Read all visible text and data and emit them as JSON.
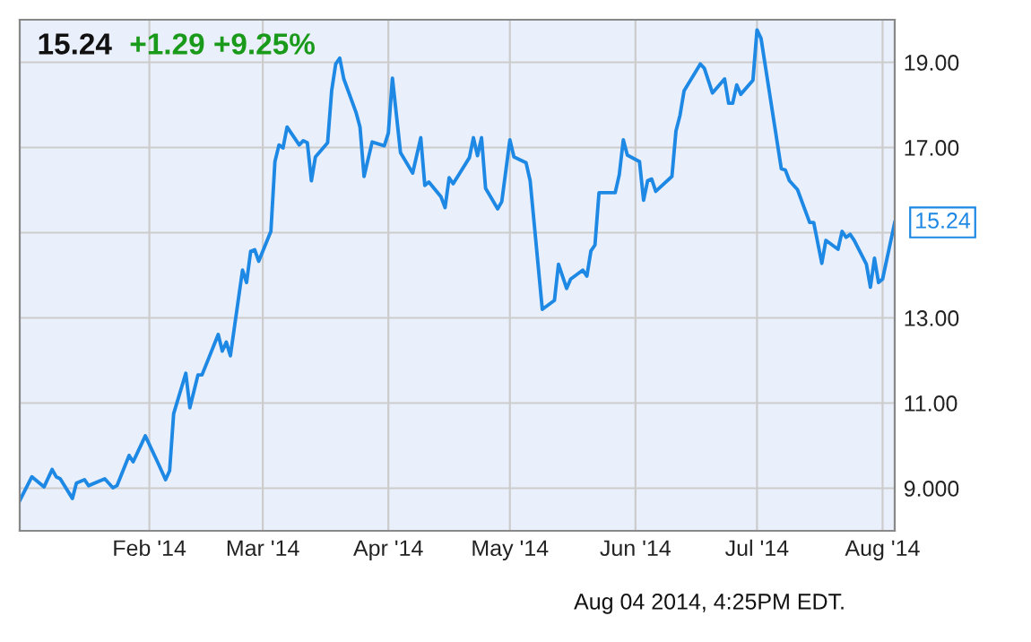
{
  "chart_data": {
    "type": "line",
    "title": "15.24",
    "subtitle": "+1.29 +9.25%",
    "annotations": [
      {
        "text": "15.24",
        "x": "2014-08-04",
        "y": 15.24
      },
      "Aug 04 2014, 4:25PM EDT."
    ],
    "x": [
      "2013-12-31",
      "2014-01-03",
      "2014-01-06",
      "2014-01-08",
      "2014-01-09",
      "2014-01-10",
      "2014-01-13",
      "2014-01-14",
      "2014-01-16",
      "2014-01-17",
      "2014-01-21",
      "2014-01-23",
      "2014-01-24",
      "2014-01-27",
      "2014-01-28",
      "2014-01-31",
      "2014-02-03",
      "2014-02-05",
      "2014-02-06",
      "2014-02-07",
      "2014-02-10",
      "2014-02-11",
      "2014-02-13",
      "2014-02-14",
      "2014-02-18",
      "2014-02-19",
      "2014-02-20",
      "2014-02-21",
      "2014-02-24",
      "2014-02-25",
      "2014-02-26",
      "2014-02-27",
      "2014-02-28",
      "2014-03-03",
      "2014-03-04",
      "2014-03-05",
      "2014-03-06",
      "2014-03-07",
      "2014-03-10",
      "2014-03-11",
      "2014-03-12",
      "2014-03-13",
      "2014-03-14",
      "2014-03-17",
      "2014-03-18",
      "2014-03-19",
      "2014-03-20",
      "2014-03-21",
      "2014-03-24",
      "2014-03-25",
      "2014-03-26",
      "2014-03-28",
      "2014-03-31",
      "2014-04-01",
      "2014-04-02",
      "2014-04-04",
      "2014-04-07",
      "2014-04-09",
      "2014-04-10",
      "2014-04-11",
      "2014-04-14",
      "2014-04-15",
      "2014-04-16",
      "2014-04-17",
      "2014-04-21",
      "2014-04-22",
      "2014-04-23",
      "2014-04-24",
      "2014-04-25",
      "2014-04-28",
      "2014-04-29",
      "2014-05-01",
      "2014-05-02",
      "2014-05-05",
      "2014-05-06",
      "2014-05-09",
      "2014-05-12",
      "2014-05-13",
      "2014-05-15",
      "2014-05-16",
      "2014-05-19",
      "2014-05-20",
      "2014-05-21",
      "2014-05-22",
      "2014-05-23",
      "2014-05-27",
      "2014-05-28",
      "2014-05-29",
      "2014-05-30",
      "2014-06-02",
      "2014-06-03",
      "2014-06-04",
      "2014-06-05",
      "2014-06-06",
      "2014-06-10",
      "2014-06-11",
      "2014-06-12",
      "2014-06-13",
      "2014-06-17",
      "2014-06-18",
      "2014-06-20",
      "2014-06-23",
      "2014-06-24",
      "2014-06-25",
      "2014-06-26",
      "2014-06-27",
      "2014-06-30",
      "2014-07-01",
      "2014-07-02",
      "2014-07-07",
      "2014-07-08",
      "2014-07-09",
      "2014-07-11",
      "2014-07-14",
      "2014-07-15",
      "2014-07-17",
      "2014-07-18",
      "2014-07-21",
      "2014-07-22",
      "2014-07-23",
      "2014-07-24",
      "2014-07-25",
      "2014-07-28",
      "2014-07-29",
      "2014-07-30",
      "2014-07-31",
      "2014-08-01",
      "2014-08-04"
    ],
    "series": [
      {
        "color": "#1e88e5",
        "values": [
          8.71,
          9.27,
          9.03,
          9.44,
          9.27,
          9.22,
          8.76,
          9.12,
          9.2,
          9.06,
          9.22,
          9.01,
          9.06,
          9.77,
          9.62,
          10.23,
          9.62,
          9.2,
          9.41,
          10.75,
          11.7,
          10.89,
          11.66,
          11.66,
          12.61,
          12.22,
          12.43,
          12.11,
          14.12,
          13.83,
          14.56,
          14.6,
          14.33,
          15.03,
          16.67,
          17.06,
          16.99,
          17.48,
          17.06,
          17.16,
          17.11,
          16.22,
          16.78,
          17.11,
          18.33,
          18.96,
          19.1,
          18.61,
          17.83,
          17.48,
          16.32,
          17.13,
          17.04,
          17.34,
          18.63,
          16.88,
          16.4,
          17.23,
          16.11,
          16.19,
          15.84,
          15.59,
          16.29,
          16.15,
          16.76,
          17.23,
          16.81,
          17.23,
          16.04,
          15.56,
          15.73,
          17.18,
          16.78,
          16.64,
          16.22,
          13.2,
          13.41,
          14.26,
          13.69,
          13.91,
          14.12,
          13.98,
          14.57,
          14.71,
          15.94,
          15.94,
          16.36,
          17.18,
          16.82,
          16.67,
          15.76,
          16.22,
          16.26,
          15.97,
          16.32,
          17.39,
          17.76,
          18.33,
          18.96,
          18.86,
          18.28,
          18.61,
          18.04,
          18.04,
          18.47,
          18.25,
          18.58,
          19.76,
          19.56,
          16.5,
          16.47,
          16.22,
          16.01,
          15.24,
          15.24,
          14.28,
          14.82,
          14.61,
          15.03,
          14.89,
          14.96,
          14.82,
          14.26,
          13.72,
          14.4,
          13.83,
          13.91,
          15.24
        ]
      }
    ],
    "xlim": [
      "2013-12-31",
      "2014-08-04"
    ],
    "xticks": [
      {
        "value": "2014-02-01",
        "label": "Feb '14"
      },
      {
        "value": "2014-03-01",
        "label": "Mar '14"
      },
      {
        "value": "2014-04-01",
        "label": "Apr '14"
      },
      {
        "value": "2014-05-01",
        "label": "May '14"
      },
      {
        "value": "2014-06-01",
        "label": "Jun '14"
      },
      {
        "value": "2014-07-01",
        "label": "Jul '14"
      },
      {
        "value": "2014-08-01",
        "label": "Aug '14"
      }
    ],
    "ylim": [
      8,
      20
    ],
    "yticks": [
      {
        "value": 9,
        "label": "9.000"
      },
      {
        "value": 11,
        "label": "11.00"
      },
      {
        "value": 13,
        "label": "13.00"
      },
      {
        "value": 15,
        "label": null
      },
      {
        "value": 17,
        "label": "17.00"
      },
      {
        "value": 19,
        "label": "19.00"
      }
    ],
    "grid": true,
    "marker": "none",
    "line_style": "solid"
  }
}
